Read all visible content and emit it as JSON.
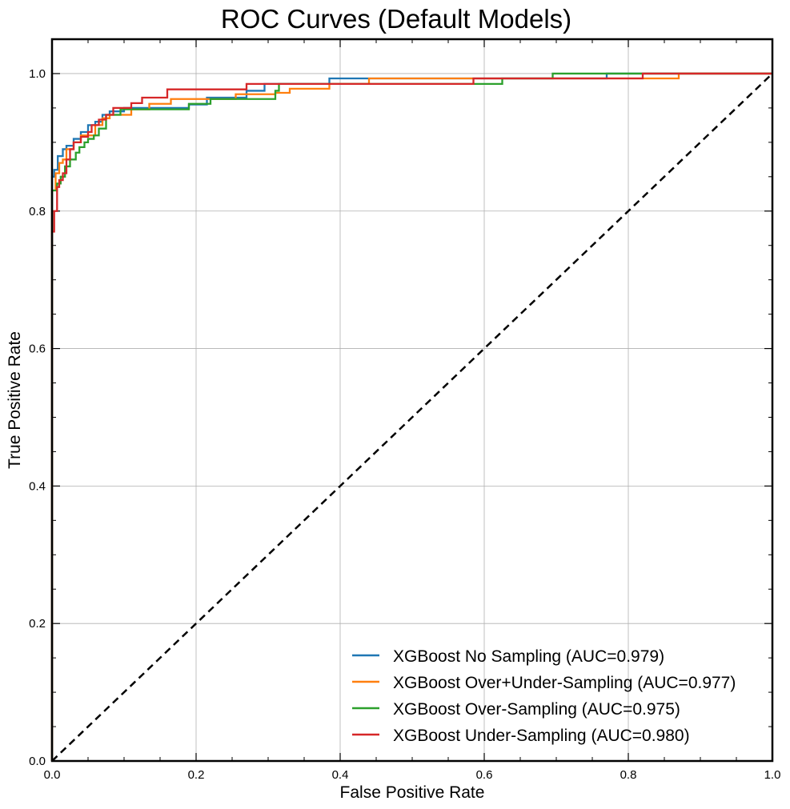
{
  "chart_data": {
    "type": "line",
    "title": "ROC Curves (Default Models)",
    "xlabel": "False Positive Rate",
    "ylabel": "True Positive Rate",
    "xlim": [
      0,
      1
    ],
    "ylim": [
      0,
      1.05
    ],
    "xticks": [
      "0.0",
      "0.2",
      "0.4",
      "0.6",
      "0.8",
      "1.0"
    ],
    "yticks": [
      "0.0",
      "0.2",
      "0.4",
      "0.6",
      "0.8",
      "1.0"
    ],
    "grid": true,
    "legend_position": "bottom-right",
    "series": [
      {
        "name": "XGBoost No Sampling (AUC=0.979)",
        "color": "#1f77b4",
        "x": [
          0,
          0,
          0.003,
          0.003,
          0.008,
          0.008,
          0.015,
          0.015,
          0.02,
          0.02,
          0.03,
          0.03,
          0.04,
          0.04,
          0.05,
          0.05,
          0.06,
          0.06,
          0.07,
          0.07,
          0.08,
          0.08,
          0.1,
          0.1,
          0.19,
          0.19,
          0.215,
          0.215,
          0.27,
          0.27,
          0.295,
          0.295,
          0.385,
          0.385,
          0.585,
          0.585,
          0.77,
          0.77,
          1.0
        ],
        "y": [
          0,
          0.85,
          0.85,
          0.86,
          0.86,
          0.88,
          0.88,
          0.89,
          0.89,
          0.895,
          0.895,
          0.905,
          0.905,
          0.915,
          0.915,
          0.925,
          0.925,
          0.93,
          0.93,
          0.94,
          0.94,
          0.945,
          0.945,
          0.95,
          0.95,
          0.955,
          0.955,
          0.965,
          0.965,
          0.975,
          0.975,
          0.985,
          0.985,
          0.993,
          0.993,
          0.993,
          0.993,
          1.0,
          1.0
        ]
      },
      {
        "name": "XGBoost Over+Under-Sampling (AUC=0.977)",
        "color": "#ff7f0e",
        "x": [
          0,
          0,
          0.005,
          0.005,
          0.01,
          0.01,
          0.015,
          0.015,
          0.02,
          0.02,
          0.03,
          0.03,
          0.04,
          0.04,
          0.06,
          0.06,
          0.07,
          0.07,
          0.08,
          0.08,
          0.11,
          0.11,
          0.135,
          0.135,
          0.165,
          0.165,
          0.255,
          0.255,
          0.31,
          0.31,
          0.33,
          0.33,
          0.385,
          0.385,
          0.44,
          0.44,
          0.82,
          0.82,
          0.87,
          0.87,
          1.0
        ],
        "y": [
          0,
          0.83,
          0.83,
          0.855,
          0.855,
          0.87,
          0.87,
          0.875,
          0.875,
          0.89,
          0.89,
          0.9,
          0.9,
          0.91,
          0.91,
          0.925,
          0.925,
          0.935,
          0.935,
          0.94,
          0.94,
          0.948,
          0.948,
          0.956,
          0.956,
          0.963,
          0.963,
          0.97,
          0.97,
          0.972,
          0.972,
          0.978,
          0.978,
          0.985,
          0.985,
          0.993,
          0.993,
          0.993,
          0.993,
          1.0,
          1.0
        ]
      },
      {
        "name": "XGBoost Over-Sampling (AUC=0.975)",
        "color": "#2ca02c",
        "x": [
          0,
          0,
          0.007,
          0.007,
          0.012,
          0.012,
          0.018,
          0.018,
          0.025,
          0.025,
          0.033,
          0.033,
          0.038,
          0.038,
          0.045,
          0.045,
          0.05,
          0.05,
          0.058,
          0.058,
          0.065,
          0.065,
          0.075,
          0.075,
          0.095,
          0.095,
          0.19,
          0.19,
          0.22,
          0.22,
          0.31,
          0.31,
          0.315,
          0.315,
          0.59,
          0.59,
          0.625,
          0.625,
          0.695,
          0.695,
          1.0
        ],
        "y": [
          0,
          0.83,
          0.83,
          0.84,
          0.84,
          0.85,
          0.85,
          0.865,
          0.865,
          0.875,
          0.875,
          0.885,
          0.885,
          0.893,
          0.893,
          0.9,
          0.9,
          0.905,
          0.905,
          0.91,
          0.91,
          0.92,
          0.92,
          0.94,
          0.94,
          0.948,
          0.948,
          0.956,
          0.956,
          0.963,
          0.963,
          0.975,
          0.975,
          0.985,
          0.985,
          0.985,
          0.985,
          0.993,
          0.993,
          1.0,
          1.0
        ]
      },
      {
        "name": "XGBoost Under-Sampling (AUC=0.980)",
        "color": "#d62728",
        "x": [
          0,
          0,
          0.003,
          0.003,
          0.007,
          0.007,
          0.01,
          0.01,
          0.015,
          0.015,
          0.02,
          0.02,
          0.025,
          0.025,
          0.03,
          0.03,
          0.04,
          0.04,
          0.05,
          0.05,
          0.055,
          0.055,
          0.065,
          0.065,
          0.075,
          0.075,
          0.085,
          0.085,
          0.11,
          0.11,
          0.125,
          0.125,
          0.16,
          0.16,
          0.27,
          0.27,
          0.31,
          0.31,
          0.585,
          0.585,
          0.82,
          0.82,
          1.0
        ],
        "y": [
          0,
          0.77,
          0.77,
          0.8,
          0.8,
          0.835,
          0.835,
          0.845,
          0.845,
          0.855,
          0.855,
          0.875,
          0.875,
          0.89,
          0.89,
          0.9,
          0.9,
          0.908,
          0.908,
          0.915,
          0.915,
          0.925,
          0.925,
          0.933,
          0.933,
          0.94,
          0.94,
          0.95,
          0.95,
          0.957,
          0.957,
          0.965,
          0.965,
          0.977,
          0.977,
          0.985,
          0.985,
          0.985,
          0.985,
          0.993,
          0.993,
          1.0,
          1.0
        ]
      }
    ],
    "reference_line": {
      "x": [
        0,
        1
      ],
      "y": [
        0,
        1
      ],
      "color": "#000000",
      "style": "dashed"
    }
  }
}
